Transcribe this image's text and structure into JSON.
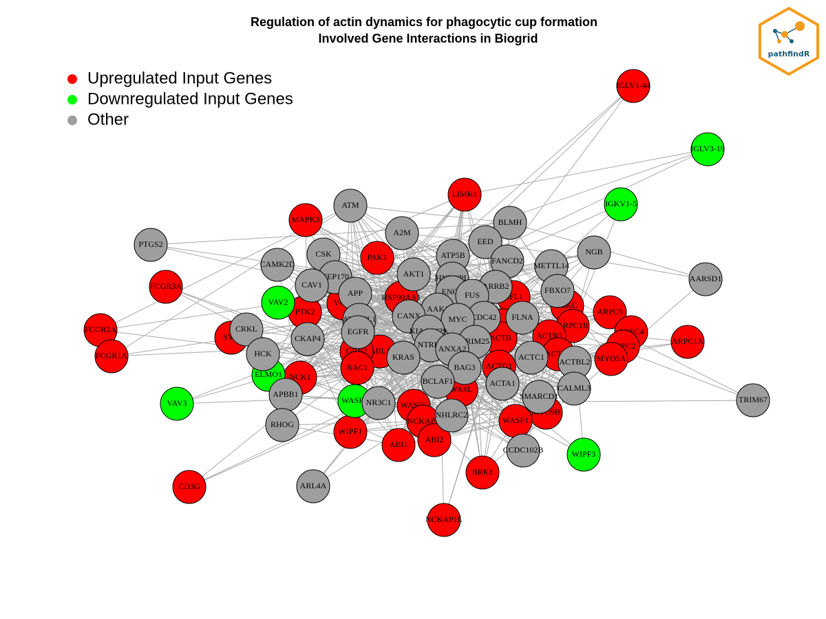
{
  "header": {
    "title": [
      "Regulation of actin dynamics for phagocytic cup formation",
      "Involved Gene Interactions in Biogrid"
    ],
    "logo": "pathfindR"
  },
  "groups": [
    {
      "label": "Upregulated Input Genes",
      "color": "#ff0000",
      "nodes": [
        "IGLV1-44",
        "LIMK1",
        "MAPK3",
        "PAK1",
        "FCGR3A",
        "HSP90AA1",
        "CFL1",
        "VAV1",
        "IGKC",
        "ARPC5",
        "PTK2",
        "MYH9",
        "ARPC1B",
        "FCGR2A",
        "ARPC4",
        "SYK",
        "ACTB",
        "ACTR2",
        "ARPC1A",
        "ABL1",
        "GRB2",
        "ARPC2",
        "FCGR1A",
        "ACTR3",
        "MYO5A",
        "RAC1",
        "ACTG1",
        "NCK1",
        "WASL",
        "WASF2",
        "MYO9B",
        "NCKAP1",
        "WASF1",
        "WIPF1",
        "ABI2",
        "ABI1",
        "BRK1",
        "CD3G",
        "NCKAP1L"
      ]
    },
    {
      "label": "Downregulated Input Genes",
      "color": "#00ff00",
      "nodes": [
        "IGLV3-19",
        "IGKV1-5",
        "VAV2",
        "ELMO1",
        "WASF3",
        "VAV3",
        "WIPF3"
      ]
    },
    {
      "label": "Other",
      "color": "#9e9e9e",
      "nodes": [
        "ATM",
        "BLMH",
        "A2M",
        "EED",
        "PTGS2",
        "NGB",
        "CSK",
        "ATP5B",
        "FANCD2",
        "CAMK2D",
        "METTL14",
        "AKT1",
        "AARSD1",
        "CEP170",
        "CAV1",
        "HNRNPL",
        "ARRB2",
        "FBXO7",
        "APP",
        "ENO1",
        "FUS",
        "AAK1",
        "CDC42",
        "CANX",
        "MYC",
        "FLNA",
        "ATG16L1",
        "CRKL",
        "EGFR",
        "KIAA1429",
        "TRIM25",
        "CKAP4",
        "NTRK1",
        "ANXA2",
        "HCK",
        "ACTC1",
        "KRAS",
        "ACTBL2",
        "BAG3",
        "BCLAF1",
        "ACTA1",
        "CALML3",
        "APBB1",
        "SMARCD1",
        "NR3C1",
        "TRIM67",
        "NHLRC2",
        "RHOG",
        "CCDC102B",
        "ARL4A"
      ]
    }
  ]
}
